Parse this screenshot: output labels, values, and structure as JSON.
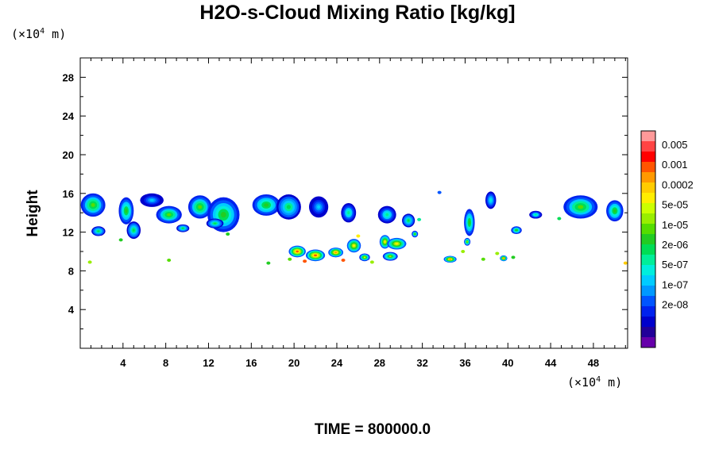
{
  "title": "H2O-s-Cloud Mixing Ratio [kg/kg]",
  "y_unit": {
    "prefix": "(×10",
    "exp": "4",
    "suffix": " m)"
  },
  "x_unit": {
    "prefix": "(×10",
    "exp": "4",
    "suffix": " m)"
  },
  "footer": "TIME = 800000.0",
  "chart_data": {
    "type": "heatmap",
    "title": "H2O-s-Cloud Mixing Ratio [kg/kg]",
    "xlabel": "",
    "ylabel": "Height",
    "xlim": [
      0,
      51.2
    ],
    "ylim": [
      0,
      30
    ],
    "x_ticks": [
      4,
      8,
      12,
      16,
      20,
      24,
      28,
      32,
      36,
      40,
      44,
      48
    ],
    "y_ticks": [
      4,
      8,
      12,
      16,
      20,
      24,
      28
    ],
    "colorbar": {
      "labels": [
        "0.005",
        "0.001",
        "0.0002",
        "5e-05",
        "1e-05",
        "2e-06",
        "5e-07",
        "1e-07",
        "2e-08"
      ],
      "colors_top_to_bottom": [
        "#ff9999",
        "#ff4444",
        "#ff0000",
        "#ff5500",
        "#ff9900",
        "#ffcc00",
        "#ffee00",
        "#ccff00",
        "#99ee00",
        "#55dd00",
        "#22cc22",
        "#00dd55",
        "#00ee99",
        "#00eedd",
        "#00ccff",
        "#0099ff",
        "#0055ff",
        "#0022ee",
        "#0000cc",
        "#220099",
        "#6600aa"
      ]
    },
    "clouds": [
      {
        "x": 1.2,
        "y": 14.8,
        "w": 2.3,
        "h": 2.4,
        "level": 0.55
      },
      {
        "x": 1.7,
        "y": 12.1,
        "w": 1.3,
        "h": 1.0,
        "level": 0.45
      },
      {
        "x": 4.3,
        "y": 14.2,
        "w": 1.4,
        "h": 2.8,
        "level": 0.5
      },
      {
        "x": 5.0,
        "y": 12.2,
        "w": 1.3,
        "h": 1.8,
        "level": 0.45
      },
      {
        "x": 6.7,
        "y": 15.3,
        "w": 2.2,
        "h": 1.4,
        "level": 0.3
      },
      {
        "x": 8.3,
        "y": 13.8,
        "w": 2.4,
        "h": 1.8,
        "level": 0.55
      },
      {
        "x": 9.6,
        "y": 12.4,
        "w": 1.2,
        "h": 0.8,
        "level": 0.45
      },
      {
        "x": 11.2,
        "y": 14.6,
        "w": 2.2,
        "h": 2.4,
        "level": 0.55
      },
      {
        "x": 13.4,
        "y": 13.8,
        "w": 3.0,
        "h": 3.6,
        "level": 0.5
      },
      {
        "x": 12.6,
        "y": 12.9,
        "w": 1.6,
        "h": 1.0,
        "level": 0.45
      },
      {
        "x": 17.4,
        "y": 14.8,
        "w": 2.6,
        "h": 2.2,
        "level": 0.5
      },
      {
        "x": 19.5,
        "y": 14.6,
        "w": 2.3,
        "h": 2.6,
        "level": 0.45
      },
      {
        "x": 22.3,
        "y": 14.6,
        "w": 1.8,
        "h": 2.2,
        "level": 0.3
      },
      {
        "x": 25.1,
        "y": 14.0,
        "w": 1.4,
        "h": 2.0,
        "level": 0.4
      },
      {
        "x": 28.7,
        "y": 13.8,
        "w": 1.7,
        "h": 1.8,
        "level": 0.4
      },
      {
        "x": 30.7,
        "y": 13.2,
        "w": 1.2,
        "h": 1.4,
        "level": 0.45
      },
      {
        "x": 36.4,
        "y": 13.0,
        "w": 1.0,
        "h": 2.8,
        "level": 0.5
      },
      {
        "x": 38.4,
        "y": 15.3,
        "w": 1.0,
        "h": 1.8,
        "level": 0.35
      },
      {
        "x": 42.6,
        "y": 13.8,
        "w": 1.2,
        "h": 0.8,
        "level": 0.4
      },
      {
        "x": 46.8,
        "y": 14.6,
        "w": 3.2,
        "h": 2.4,
        "level": 0.55
      },
      {
        "x": 50.0,
        "y": 14.2,
        "w": 1.6,
        "h": 2.2,
        "level": 0.5
      },
      {
        "x": 40.8,
        "y": 12.2,
        "w": 1.0,
        "h": 0.8,
        "level": 0.5
      },
      {
        "x": 20.3,
        "y": 10.0,
        "w": 1.6,
        "h": 1.2,
        "level": 0.85
      },
      {
        "x": 22.0,
        "y": 9.6,
        "w": 1.8,
        "h": 1.2,
        "level": 0.85
      },
      {
        "x": 23.9,
        "y": 9.9,
        "w": 1.4,
        "h": 1.0,
        "level": 0.8
      },
      {
        "x": 25.6,
        "y": 10.6,
        "w": 1.3,
        "h": 1.4,
        "level": 0.7
      },
      {
        "x": 26.6,
        "y": 9.4,
        "w": 1.0,
        "h": 0.8,
        "level": 0.65
      },
      {
        "x": 28.5,
        "y": 11.0,
        "w": 1.0,
        "h": 1.4,
        "level": 0.7
      },
      {
        "x": 29.6,
        "y": 10.8,
        "w": 1.8,
        "h": 1.2,
        "level": 0.7
      },
      {
        "x": 29.0,
        "y": 9.5,
        "w": 1.4,
        "h": 0.9,
        "level": 0.6
      },
      {
        "x": 34.6,
        "y": 9.2,
        "w": 1.2,
        "h": 0.7,
        "level": 0.8
      },
      {
        "x": 39.6,
        "y": 9.3,
        "w": 0.7,
        "h": 0.6,
        "level": 0.8
      },
      {
        "x": 36.2,
        "y": 11.0,
        "w": 0.6,
        "h": 0.8,
        "level": 0.6
      },
      {
        "x": 31.3,
        "y": 11.8,
        "w": 0.6,
        "h": 0.7,
        "level": 0.55
      }
    ],
    "specks": [
      {
        "x": 0.9,
        "y": 8.9,
        "level": 0.6
      },
      {
        "x": 3.8,
        "y": 11.2,
        "level": 0.5
      },
      {
        "x": 8.3,
        "y": 9.1,
        "level": 0.55
      },
      {
        "x": 13.8,
        "y": 11.8,
        "level": 0.5
      },
      {
        "x": 17.6,
        "y": 8.8,
        "level": 0.5
      },
      {
        "x": 19.6,
        "y": 9.2,
        "level": 0.55
      },
      {
        "x": 27.3,
        "y": 8.9,
        "level": 0.6
      },
      {
        "x": 31.7,
        "y": 13.3,
        "level": 0.4
      },
      {
        "x": 33.6,
        "y": 16.1,
        "level": 0.2
      },
      {
        "x": 35.8,
        "y": 10.0,
        "level": 0.6
      },
      {
        "x": 37.7,
        "y": 9.2,
        "level": 0.55
      },
      {
        "x": 39.0,
        "y": 9.8,
        "level": 0.6
      },
      {
        "x": 40.5,
        "y": 9.4,
        "level": 0.5
      },
      {
        "x": 44.8,
        "y": 13.4,
        "level": 0.45
      },
      {
        "x": 51.0,
        "y": 8.8,
        "level": 0.75
      },
      {
        "x": 21.0,
        "y": 9.0,
        "level": 0.85
      },
      {
        "x": 24.6,
        "y": 9.1,
        "level": 0.85
      },
      {
        "x": 26.0,
        "y": 11.6,
        "level": 0.7
      }
    ]
  }
}
